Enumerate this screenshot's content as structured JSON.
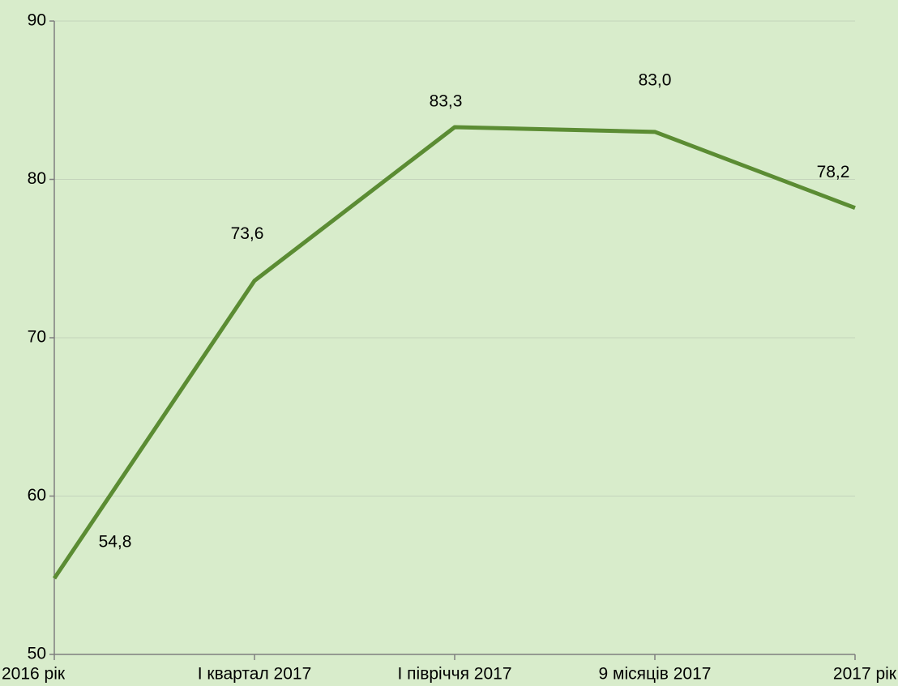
{
  "chart_data": {
    "type": "line",
    "categories": [
      "2016 рік",
      "I квартал 2017",
      "I півріччя 2017",
      "9 місяців 2017",
      "2017 рік"
    ],
    "series": [
      {
        "name": "",
        "color": "#5b8c33",
        "values": [
          54.8,
          73.6,
          83.3,
          83.0,
          78.2
        ],
        "value_labels": [
          "54,8",
          "73,6",
          "83,3",
          "83,0",
          "78,2"
        ]
      }
    ],
    "ylim": [
      50,
      90
    ],
    "yticks": [
      50,
      60,
      70,
      80,
      90
    ],
    "grid": true
  }
}
